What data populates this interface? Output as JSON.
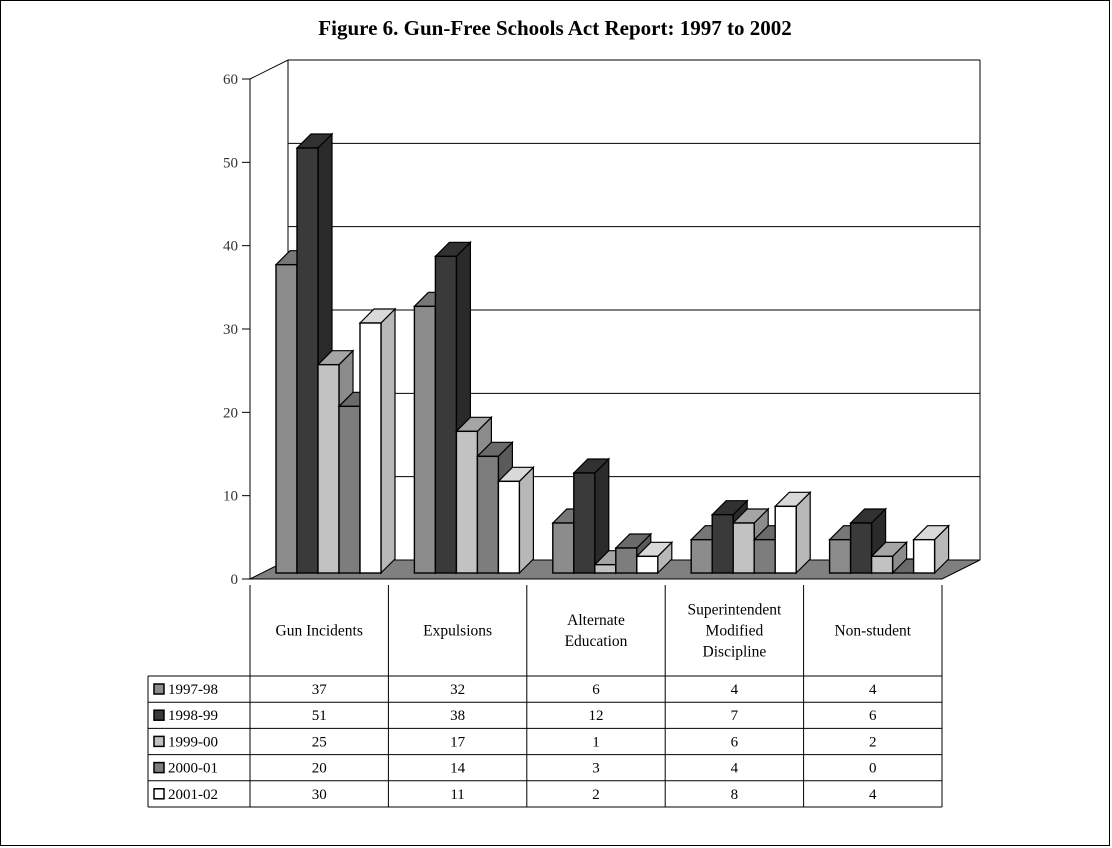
{
  "title": "Figure 6.  Gun-Free Schools Act Report: 1997 to 2002",
  "chart_data": {
    "type": "bar",
    "title": "Figure 6.  Gun-Free Schools Act Report: 1997 to 2002",
    "xlabel": "",
    "ylabel": "",
    "ylim": [
      0,
      60
    ],
    "yticks": [
      0,
      10,
      20,
      30,
      40,
      50,
      60
    ],
    "categories": [
      [
        "Gun Incidents"
      ],
      [
        "Expulsions"
      ],
      [
        "Alternate",
        "Education"
      ],
      [
        "Superintendent",
        "Modified",
        "Discipline"
      ],
      [
        "Non-student"
      ]
    ],
    "series": [
      {
        "name": "1997-98",
        "color": "#8c8c8c",
        "values": [
          37,
          32,
          6,
          4,
          4
        ]
      },
      {
        "name": "1998-99",
        "color": "#3a3a3a",
        "values": [
          51,
          38,
          12,
          7,
          6
        ]
      },
      {
        "name": "1999-00",
        "color": "#c2c2c2",
        "values": [
          25,
          17,
          1,
          6,
          2
        ]
      },
      {
        "name": "2000-01",
        "color": "#7d7d7d",
        "values": [
          20,
          14,
          3,
          4,
          0
        ]
      },
      {
        "name": "2001-02",
        "color": "#ffffff",
        "values": [
          30,
          11,
          2,
          8,
          4
        ]
      }
    ],
    "grid": true,
    "style": "3d-clustered-column with data table and legend keys"
  }
}
